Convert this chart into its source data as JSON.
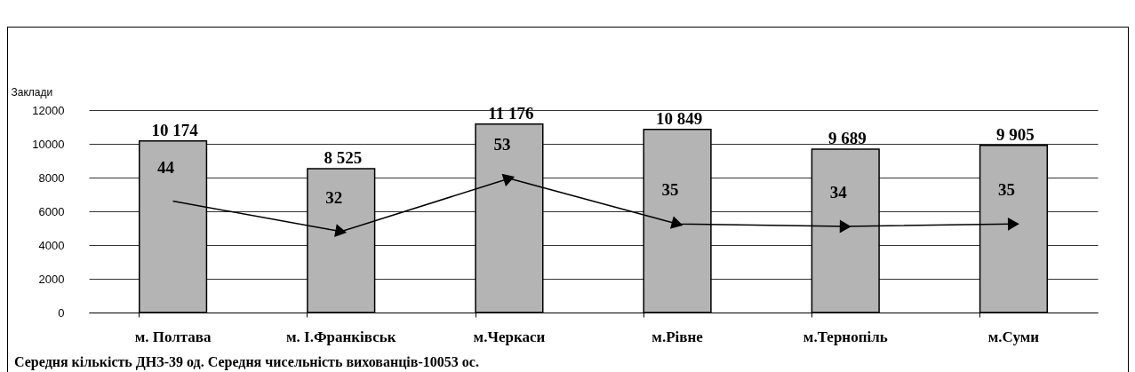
{
  "chart_data": {
    "type": "bar",
    "ylabel": "Заклади",
    "categories": [
      "м. Полтава",
      "м. І.Франківськ",
      "м.Черкаси",
      "м.Рівне",
      "м.Тернопіль",
      "м.Суми"
    ],
    "series": [
      {
        "color": "#b4b4b4",
        "values": [
          10174,
          8525,
          11176,
          10849,
          9689,
          9905
        ],
        "value_labels": [
          "10 174",
          "8 525",
          "11 176",
          "10 849",
          "9 689",
          "9 905"
        ]
      },
      {
        "type": "line",
        "axis": "y2",
        "color": "#000000",
        "marker": "triangle",
        "values": [
          44,
          32,
          53,
          35,
          34,
          35
        ],
        "value_labels": [
          "44",
          "32",
          "53",
          "35",
          "34",
          "35"
        ]
      }
    ],
    "ylim": [
      0,
      12000
    ],
    "yticks": [
      0,
      2000,
      4000,
      6000,
      8000,
      10000,
      12000
    ],
    "y2lim": [
      0,
      80
    ],
    "grid": "y",
    "annotations": [
      "Середня кількість ДНЗ-39 од. Середня чисельність вихованців-10053 ос."
    ]
  }
}
